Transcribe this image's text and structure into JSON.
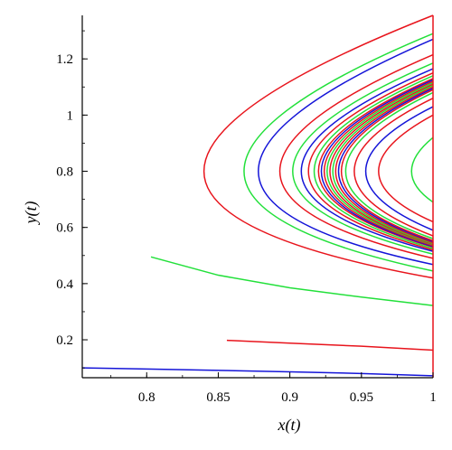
{
  "chart_data": {
    "type": "line",
    "xlabel": "x(t)",
    "ylabel": "y(t)",
    "xlim": [
      0.755,
      1.0
    ],
    "ylim": [
      0.065,
      1.355
    ],
    "x_ticks": [
      0.8,
      0.85,
      0.9,
      0.95,
      1
    ],
    "x_tick_labels": [
      "0.8",
      "0.85",
      "0.9",
      "0.95",
      "1"
    ],
    "y_ticks": [
      0.2,
      0.4,
      0.6,
      0.8,
      1.0,
      1.2
    ],
    "y_tick_labels": [
      "0.2",
      "0.4",
      "0.6",
      "0.8",
      "1",
      "1.2"
    ],
    "grid": false,
    "legend": "none",
    "colors": {
      "red": "#e8141c",
      "green": "#22e03a",
      "blue": "#1414d8"
    },
    "series": [
      {
        "color": "red",
        "kind": "curve",
        "points": [
          [
            1.0,
            1.355
          ],
          [
            0.84,
            0.8
          ],
          [
            1.0,
            0.42
          ]
        ]
      },
      {
        "color": "green",
        "kind": "curve",
        "points": [
          [
            1.0,
            1.29
          ],
          [
            0.868,
            0.8
          ],
          [
            1.0,
            0.445
          ]
        ]
      },
      {
        "color": "blue",
        "kind": "curve",
        "points": [
          [
            1.0,
            1.27
          ],
          [
            0.878,
            0.8
          ],
          [
            1.0,
            0.468
          ]
        ]
      },
      {
        "color": "red",
        "kind": "curve",
        "points": [
          [
            1.0,
            1.215
          ],
          [
            0.893,
            0.8
          ],
          [
            1.0,
            0.49
          ]
        ]
      },
      {
        "color": "green",
        "kind": "curve",
        "points": [
          [
            1.0,
            1.185
          ],
          [
            0.902,
            0.8
          ],
          [
            1.0,
            0.505
          ]
        ]
      },
      {
        "color": "blue",
        "kind": "curve",
        "points": [
          [
            1.0,
            1.165
          ],
          [
            0.908,
            0.8
          ],
          [
            1.0,
            0.515
          ]
        ]
      },
      {
        "color": "red",
        "kind": "curve",
        "points": [
          [
            1.0,
            1.15
          ],
          [
            0.913,
            0.8
          ],
          [
            1.0,
            0.52
          ]
        ]
      },
      {
        "color": "green",
        "kind": "curve",
        "points": [
          [
            1.0,
            1.14
          ],
          [
            0.917,
            0.8
          ],
          [
            1.0,
            0.525
          ]
        ]
      },
      {
        "color": "red",
        "kind": "curve",
        "points": [
          [
            1.0,
            1.13
          ],
          [
            0.92,
            0.8
          ],
          [
            1.0,
            0.53
          ]
        ]
      },
      {
        "color": "blue",
        "kind": "curve",
        "points": [
          [
            1.0,
            1.125
          ],
          [
            0.922,
            0.8
          ],
          [
            1.0,
            0.532
          ]
        ]
      },
      {
        "color": "red",
        "kind": "curve",
        "points": [
          [
            1.0,
            1.12
          ],
          [
            0.924,
            0.8
          ],
          [
            1.0,
            0.535
          ]
        ]
      },
      {
        "color": "green",
        "kind": "curve",
        "points": [
          [
            1.0,
            1.115
          ],
          [
            0.926,
            0.8
          ],
          [
            1.0,
            0.538
          ]
        ]
      },
      {
        "color": "red",
        "kind": "curve",
        "points": [
          [
            1.0,
            1.11
          ],
          [
            0.928,
            0.8
          ],
          [
            1.0,
            0.54
          ]
        ]
      },
      {
        "color": "green",
        "kind": "curve",
        "points": [
          [
            1.0,
            1.105
          ],
          [
            0.93,
            0.8
          ],
          [
            1.0,
            0.543
          ]
        ]
      },
      {
        "color": "red",
        "kind": "curve",
        "points": [
          [
            1.0,
            1.1
          ],
          [
            0.932,
            0.8
          ],
          [
            1.0,
            0.546
          ]
        ]
      },
      {
        "color": "blue",
        "kind": "curve",
        "points": [
          [
            1.0,
            1.095
          ],
          [
            0.934,
            0.8
          ],
          [
            1.0,
            0.55
          ]
        ]
      },
      {
        "color": "red",
        "kind": "curve",
        "points": [
          [
            1.0,
            1.09
          ],
          [
            0.936,
            0.8
          ],
          [
            1.0,
            0.553
          ]
        ]
      },
      {
        "color": "green",
        "kind": "curve",
        "points": [
          [
            1.0,
            1.08
          ],
          [
            0.939,
            0.8
          ],
          [
            1.0,
            0.56
          ]
        ]
      },
      {
        "color": "red",
        "kind": "curve",
        "points": [
          [
            1.0,
            1.06
          ],
          [
            0.945,
            0.8
          ],
          [
            1.0,
            0.57
          ]
        ]
      },
      {
        "color": "blue",
        "kind": "curve",
        "points": [
          [
            1.0,
            1.03
          ],
          [
            0.953,
            0.8
          ],
          [
            1.0,
            0.59
          ]
        ]
      },
      {
        "color": "red",
        "kind": "curve",
        "points": [
          [
            1.0,
            1.0
          ],
          [
            0.962,
            0.8
          ],
          [
            1.0,
            0.62
          ]
        ]
      },
      {
        "color": "green",
        "kind": "curve",
        "points": [
          [
            1.0,
            0.92
          ],
          [
            0.985,
            0.8
          ],
          [
            1.0,
            0.69
          ]
        ]
      },
      {
        "color": "green",
        "kind": "line",
        "points": [
          [
            0.803,
            0.495
          ],
          [
            0.85,
            0.43
          ],
          [
            0.9,
            0.385
          ],
          [
            0.95,
            0.352
          ],
          [
            1.0,
            0.322
          ]
        ]
      },
      {
        "color": "red",
        "kind": "line",
        "points": [
          [
            0.856,
            0.198
          ],
          [
            0.9,
            0.188
          ],
          [
            0.95,
            0.177
          ],
          [
            1.0,
            0.163
          ]
        ]
      },
      {
        "color": "blue",
        "kind": "line",
        "points": [
          [
            0.755,
            0.1
          ],
          [
            0.8,
            0.096
          ],
          [
            0.85,
            0.091
          ],
          [
            0.9,
            0.086
          ],
          [
            0.95,
            0.08
          ],
          [
            1.0,
            0.072
          ]
        ]
      },
      {
        "color": "red",
        "kind": "line",
        "points": [
          [
            1.0,
            0.065
          ],
          [
            1.0,
            1.355
          ]
        ]
      }
    ]
  }
}
